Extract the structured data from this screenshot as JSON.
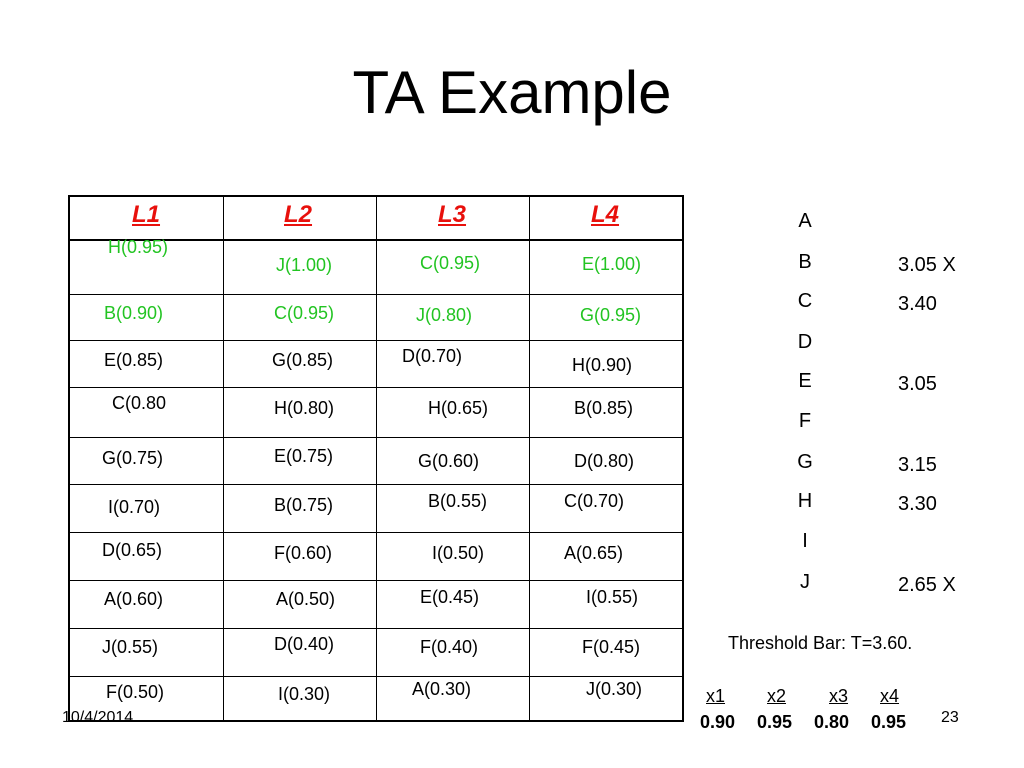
{
  "title": "TA Example",
  "colors": {
    "header": "#e8100c",
    "green": "#22c422",
    "text": "#000000"
  },
  "table": {
    "headers": [
      "L1",
      "L2",
      "L3",
      "L4"
    ],
    "rows": [
      [
        "H(0.95)",
        "J(1.00)",
        "C(0.95)",
        "E(1.00)"
      ],
      [
        "B(0.90)",
        "C(0.95)",
        "J(0.80)",
        "G(0.95)"
      ],
      [
        "E(0.85)",
        "G(0.85)",
        "D(0.70)",
        "H(0.90)"
      ],
      [
        "C(0.80",
        "H(0.80)",
        "H(0.65)",
        "B(0.85)"
      ],
      [
        "G(0.75)",
        "E(0.75)",
        "G(0.60)",
        "D(0.80)"
      ],
      [
        "I(0.70)",
        "B(0.75)",
        "B(0.55)",
        "C(0.70)"
      ],
      [
        "D(0.65)",
        "F(0.60)",
        "I(0.50)",
        "A(0.65)"
      ],
      [
        "A(0.60)",
        "A(0.50)",
        "E(0.45)",
        "I(0.55)"
      ],
      [
        "J(0.55)",
        "D(0.40)",
        "F(0.40)",
        "F(0.45)"
      ],
      [
        "F(0.50)",
        "I(0.30)",
        "A(0.30)",
        "J(0.30)"
      ]
    ],
    "green_rows": [
      0,
      1
    ]
  },
  "objects": [
    {
      "letter": "A",
      "score": ""
    },
    {
      "letter": "B",
      "score": "3.05 X"
    },
    {
      "letter": "C",
      "score": "3.40"
    },
    {
      "letter": "D",
      "score": ""
    },
    {
      "letter": "E",
      "score": "3.05"
    },
    {
      "letter": "F",
      "score": ""
    },
    {
      "letter": "G",
      "score": "3.15"
    },
    {
      "letter": "H",
      "score": "3.30"
    },
    {
      "letter": "I",
      "score": ""
    },
    {
      "letter": "J",
      "score": "2.65 X"
    }
  ],
  "threshold": "Threshold Bar: T=3.60.",
  "bar_labels": [
    "x1",
    "x2",
    "x3",
    "x4"
  ],
  "bar_values": [
    "0.90",
    "0.95",
    "0.80",
    "0.95"
  ],
  "footer": {
    "date": "10/4/2014",
    "page": "23"
  }
}
